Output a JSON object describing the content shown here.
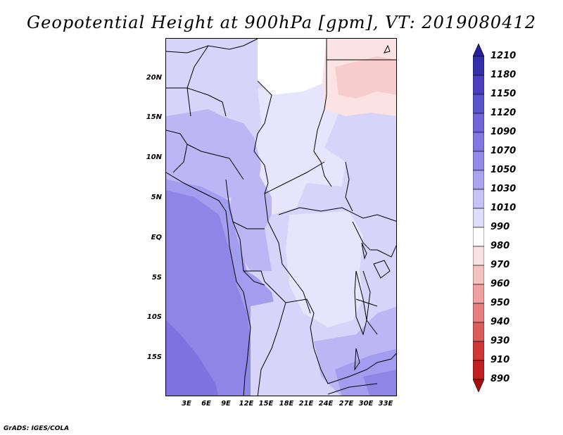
{
  "title": "Geopotential Height at 900hPa [gpm], VT: 2019080412",
  "credit": "GrADS: IGES/COLA",
  "lat_labels": [
    "20N",
    "15N",
    "10N",
    "5N",
    "EQ",
    "5S",
    "10S",
    "15S"
  ],
  "lon_labels": [
    "3E",
    "6E",
    "9E",
    "12E",
    "15E",
    "18E",
    "21E",
    "24E",
    "27E",
    "30E",
    "33E"
  ],
  "colorbar": {
    "labels": [
      "1210",
      "1180",
      "1150",
      "1120",
      "1090",
      "1070",
      "1050",
      "1030",
      "1010",
      "990",
      "980",
      "970",
      "960",
      "950",
      "940",
      "930",
      "910",
      "890"
    ],
    "colors": [
      "#2a1f96",
      "#3630ad",
      "#4a40c0",
      "#5a55cc",
      "#6e66d8",
      "#8078e2",
      "#928ce8",
      "#aaa4ef",
      "#c6c2f5",
      "#dedcfa",
      "#ffffff",
      "#fbe2e2",
      "#f5c2c2",
      "#efa0a0",
      "#e68080",
      "#dc5c5c",
      "#d03838",
      "#c02020",
      "#a81010"
    ]
  },
  "map_colors": {
    "c1110": "#7c73e0",
    "c1090": "#8d86e6",
    "c1070": "#a39def",
    "c1050": "#bcb7f4",
    "c1030": "#d6d4f8",
    "c1010": "#e6e5fb",
    "c1000": "#ffffff",
    "c990": "#fbe3e3",
    "c980": "#f6cccc"
  }
}
